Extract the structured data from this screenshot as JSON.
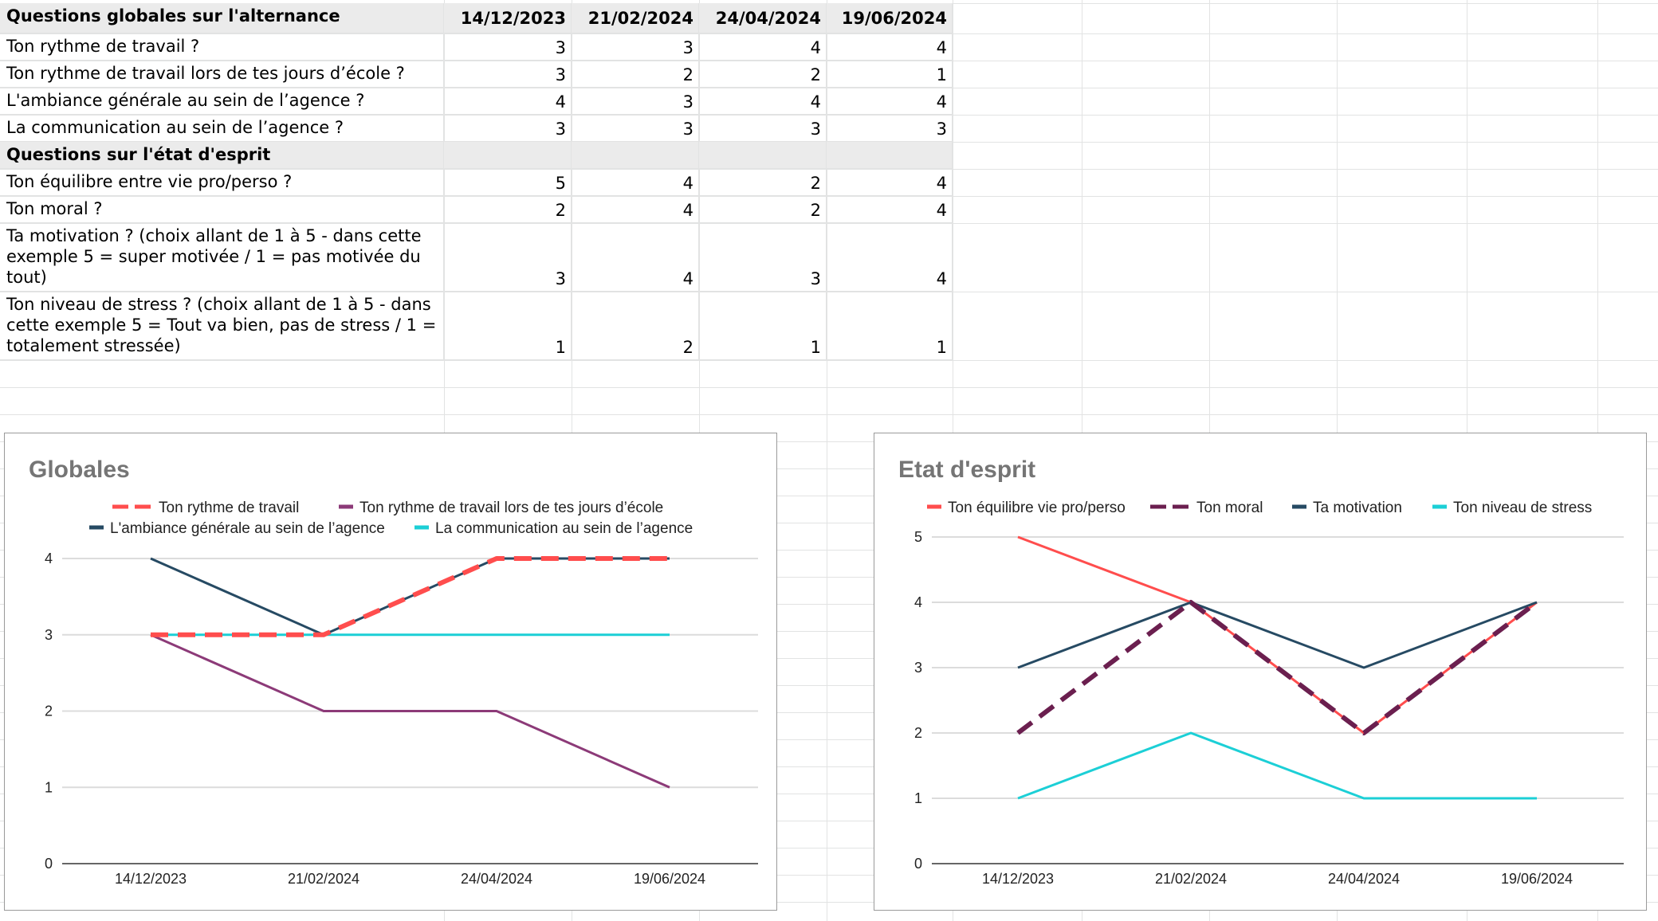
{
  "table": {
    "header_globales": {
      "label": "Questions globales sur l'alternance",
      "dates": [
        "14/12/2023",
        "21/02/2024",
        "24/04/2024",
        "19/06/2024"
      ]
    },
    "rows_globales": [
      {
        "q": "Ton rythme de travail ?",
        "v": [
          "3",
          "3",
          "4",
          "4"
        ]
      },
      {
        "q": "Ton rythme de travail lors de tes jours d’école ?",
        "v": [
          "3",
          "2",
          "2",
          "1"
        ]
      },
      {
        "q": "L'ambiance générale au sein de l’agence ?",
        "v": [
          "4",
          "3",
          "4",
          "4"
        ]
      },
      {
        "q": "La communication au sein de l’agence ?",
        "v": [
          "3",
          "3",
          "3",
          "3"
        ]
      }
    ],
    "header_esprit": {
      "label": "Questions sur l'état d'esprit"
    },
    "rows_esprit": [
      {
        "q": "Ton équilibre entre vie pro/perso ?",
        "v": [
          "5",
          "4",
          "2",
          "4"
        ]
      },
      {
        "q": "Ton moral ?",
        "v": [
          "2",
          "4",
          "2",
          "4"
        ]
      },
      {
        "q": "Ta motivation ? (choix allant de 1 à 5 - dans cette\nexemple 5 = super motivée / 1 = pas motivée du\ntout)",
        "v": [
          "3",
          "4",
          "3",
          "4"
        ]
      },
      {
        "q": "Ton niveau de stress ? (choix allant de 1 à 5 - dans\ncette exemple 5 = Tout va bien, pas de stress / 1 =\ntotalement stressée)",
        "v": [
          "1",
          "2",
          "1",
          "1"
        ]
      }
    ]
  },
  "chart_data": [
    {
      "type": "line",
      "title": "Globales",
      "categories": [
        "14/12/2023",
        "21/02/2024",
        "24/04/2024",
        "19/06/2024"
      ],
      "ylim": [
        0,
        4
      ],
      "yticks": [
        0,
        1,
        2,
        3,
        4
      ],
      "grid": true,
      "legend": "top",
      "series": [
        {
          "name": "Ton rythme de travail",
          "values": [
            3,
            3,
            4,
            4
          ],
          "color": "#ff4d4d",
          "dashed": true
        },
        {
          "name": "Ton rythme de travail lors de tes jours d’école",
          "values": [
            3,
            2,
            2,
            1
          ],
          "color": "#8c3a78",
          "dashed": false
        },
        {
          "name": "L'ambiance générale au sein de l’agence",
          "values": [
            4,
            3,
            4,
            4
          ],
          "color": "#264a63",
          "dashed": false
        },
        {
          "name": "La communication au sein de l’agence",
          "values": [
            3,
            3,
            3,
            3
          ],
          "color": "#1ccfd6",
          "dashed": false
        }
      ]
    },
    {
      "type": "line",
      "title": "Etat d'esprit",
      "categories": [
        "14/12/2023",
        "21/02/2024",
        "24/04/2024",
        "19/06/2024"
      ],
      "ylim": [
        0,
        5
      ],
      "yticks": [
        0,
        1,
        2,
        3,
        4,
        5
      ],
      "grid": true,
      "legend": "top",
      "series": [
        {
          "name": "Ton équilibre vie pro/perso",
          "values": [
            5,
            4,
            2,
            4
          ],
          "color": "#ff4d4d",
          "dashed": false
        },
        {
          "name": "Ton moral",
          "values": [
            2,
            4,
            2,
            4
          ],
          "color": "#6b1f4f",
          "dashed": true
        },
        {
          "name": "Ta motivation",
          "values": [
            3,
            4,
            3,
            4
          ],
          "color": "#264a63",
          "dashed": false
        },
        {
          "name": "Ton niveau de stress",
          "values": [
            1,
            2,
            1,
            1
          ],
          "color": "#1ccfd6",
          "dashed": false
        }
      ]
    }
  ]
}
